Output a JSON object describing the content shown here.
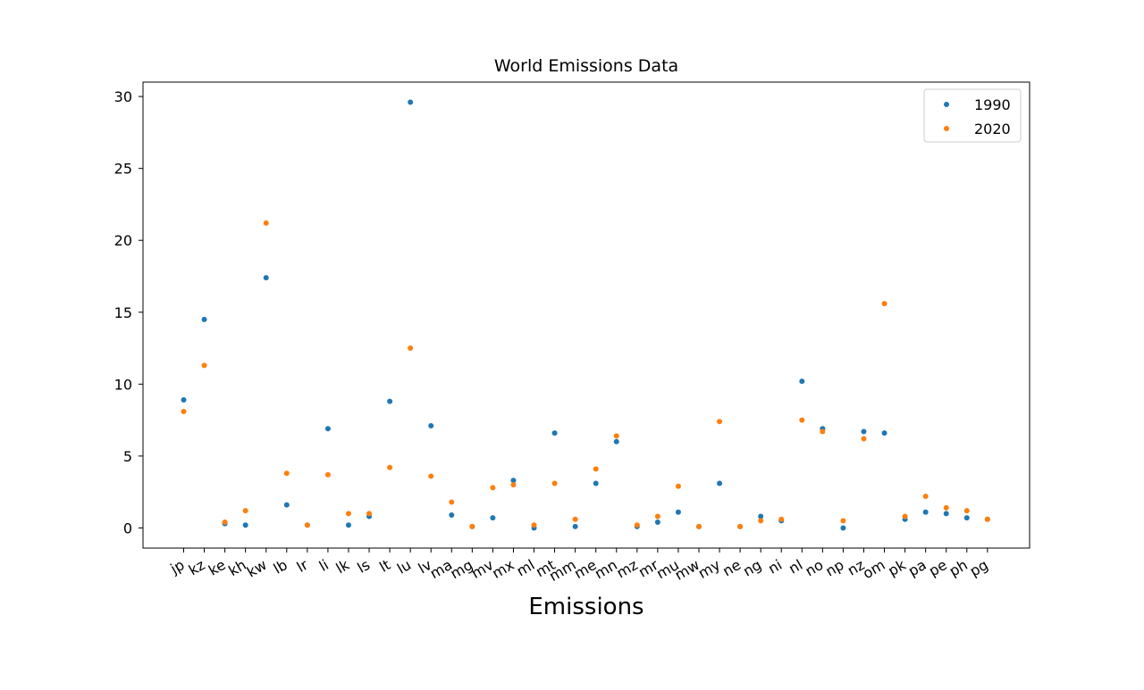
{
  "chart_data": {
    "type": "scatter",
    "title": "World Emissions Data",
    "xlabel": "Emissions",
    "ylabel": "",
    "ylim": [
      -1.4,
      31.0
    ],
    "yticks": [
      0,
      5,
      10,
      15,
      20,
      25,
      30
    ],
    "grid": false,
    "legend_position": "top-right",
    "categories": [
      "jp",
      "kz",
      "ke",
      "kh",
      "kw",
      "lb",
      "lr",
      "li",
      "lk",
      "ls",
      "lt",
      "lu",
      "lv",
      "ma",
      "mg",
      "mv",
      "mx",
      "ml",
      "mt",
      "mm",
      "me",
      "mn",
      "mz",
      "mr",
      "mu",
      "mw",
      "my",
      "ne",
      "ng",
      "ni",
      "nl",
      "no",
      "np",
      "nz",
      "om",
      "pk",
      "pa",
      "pe",
      "ph",
      "pg"
    ],
    "series": [
      {
        "name": "1990",
        "color": "#1f77b4",
        "values": [
          8.9,
          14.5,
          0.3,
          0.2,
          17.4,
          1.6,
          0.2,
          6.9,
          0.2,
          0.8,
          8.8,
          29.6,
          7.1,
          0.9,
          0.1,
          0.7,
          3.3,
          0.0,
          6.6,
          0.1,
          3.1,
          6.0,
          0.1,
          0.4,
          1.1,
          0.1,
          3.1,
          0.1,
          0.8,
          0.5,
          10.2,
          6.9,
          0.0,
          6.7,
          6.6,
          0.6,
          1.1,
          1.0,
          0.7,
          0.6
        ]
      },
      {
        "name": "2020",
        "color": "#ff7f0e",
        "values": [
          8.1,
          11.3,
          0.4,
          1.2,
          21.2,
          3.8,
          0.2,
          3.7,
          1.0,
          1.0,
          4.2,
          12.5,
          3.6,
          1.8,
          0.1,
          2.8,
          3.0,
          0.2,
          3.1,
          0.6,
          4.1,
          6.4,
          0.2,
          0.8,
          2.9,
          0.1,
          7.4,
          0.1,
          0.5,
          0.6,
          7.5,
          6.7,
          0.5,
          6.2,
          15.6,
          0.8,
          2.2,
          1.4,
          1.2,
          0.6
        ]
      }
    ]
  }
}
